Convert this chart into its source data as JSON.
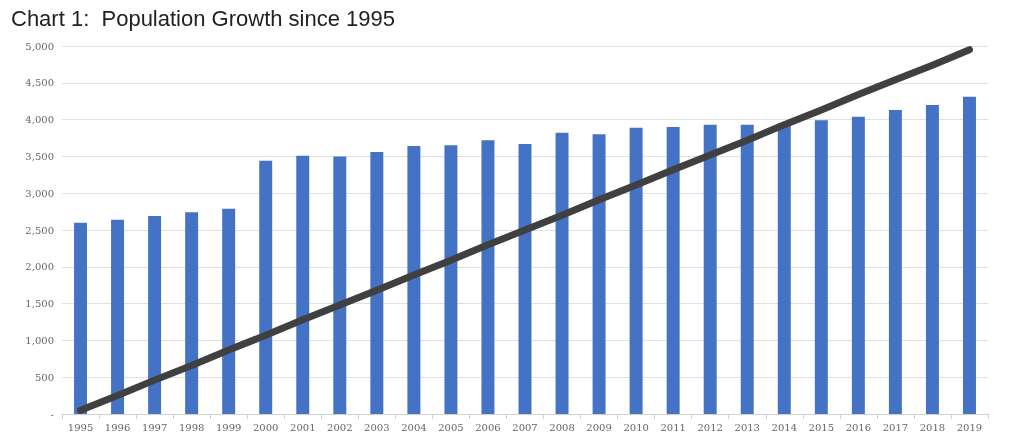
{
  "chart_data": {
    "type": "bar",
    "title": "Chart 1:  Population Growth since 1995",
    "categories": [
      "1995",
      "1996",
      "1997",
      "1998",
      "1999",
      "2000",
      "2001",
      "2002",
      "2003",
      "2004",
      "2005",
      "2006",
      "2007",
      "2008",
      "2009",
      "2010",
      "2011",
      "2012",
      "2013",
      "2014",
      "2015",
      "2016",
      "2017",
      "2018",
      "2019"
    ],
    "series": [
      {
        "color": "#4472c4",
        "values": [
          2600,
          2640,
          2690,
          2740,
          2790,
          3440,
          3510,
          3500,
          3560,
          3640,
          3650,
          3720,
          3670,
          3820,
          3800,
          3890,
          3900,
          3930,
          3930,
          3950,
          3990,
          4040,
          4130,
          4200,
          4310
        ]
      },
      {
        "type": "line",
        "color": "#404040",
        "values": [
          50,
          250,
          460,
          660,
          870,
          1070,
          1280,
          1480,
          1680,
          1890,
          2090,
          2300,
          2500,
          2700,
          2910,
          3110,
          3320,
          3520,
          3720,
          3930,
          4130,
          4340,
          4540,
          4740,
          4950
        ]
      }
    ],
    "ylim": [
      0,
      5000
    ],
    "yticks": [
      {
        "value": 0,
        "label": "-"
      },
      {
        "value": 500,
        "label": "500"
      },
      {
        "value": 1000,
        "label": "1,000"
      },
      {
        "value": 1500,
        "label": "1,500"
      },
      {
        "value": 2000,
        "label": "2,000"
      },
      {
        "value": 2500,
        "label": "2,500"
      },
      {
        "value": 3000,
        "label": "3,000"
      },
      {
        "value": 3500,
        "label": "3,500"
      },
      {
        "value": 4000,
        "label": "4,000"
      },
      {
        "value": 4500,
        "label": "4,500"
      },
      {
        "value": 5000,
        "label": "5,000"
      }
    ],
    "grid": "y",
    "marker": "none"
  }
}
